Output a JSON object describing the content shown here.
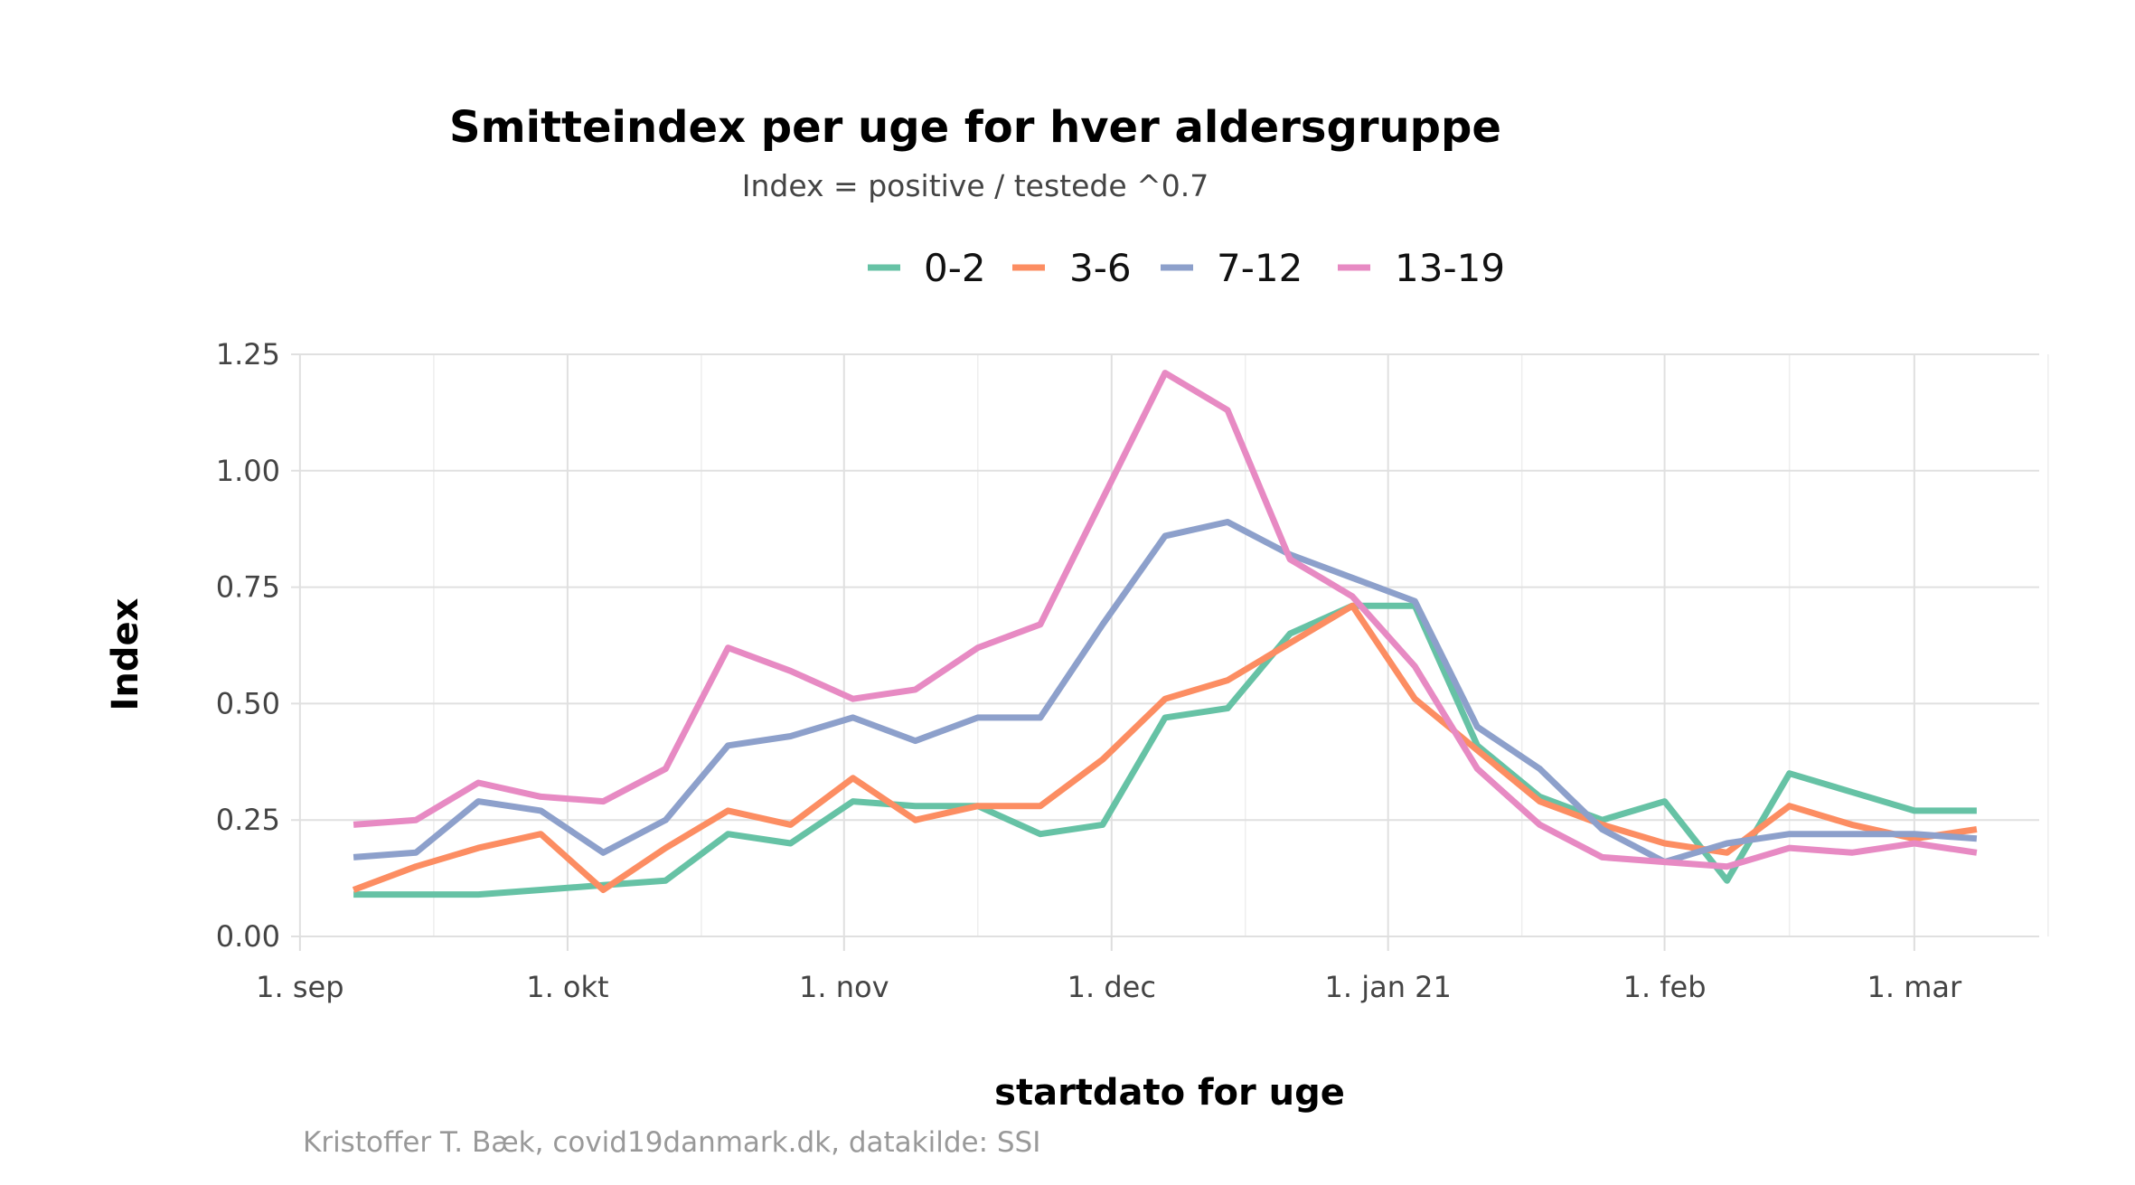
{
  "chart_data": {
    "type": "line",
    "title": "Smitteindex per uge for hver aldersgruppe",
    "subtitle": "Index = positive / testede ^0.7",
    "xlabel": "startdato for uge",
    "ylabel": "Index",
    "caption": "Kristoffer T. Bæk, covid19danmark.dk, datakilde: SSI",
    "legend_position": "top",
    "grid": true,
    "ylim": [
      0,
      1.25
    ],
    "xlim": [
      "2020-08-31",
      "2021-03-15"
    ],
    "y_ticks": [
      {
        "value": 0.0,
        "label": "0.00"
      },
      {
        "value": 0.25,
        "label": "0.25"
      },
      {
        "value": 0.5,
        "label": "0.50"
      },
      {
        "value": 0.75,
        "label": "0.75"
      },
      {
        "value": 1.0,
        "label": "1.00"
      },
      {
        "value": 1.25,
        "label": "1.25"
      }
    ],
    "x_ticks": [
      {
        "date": "2020-09-01",
        "label": "1. sep"
      },
      {
        "date": "2020-10-01",
        "label": "1. okt"
      },
      {
        "date": "2020-11-01",
        "label": "1. nov"
      },
      {
        "date": "2020-12-01",
        "label": "1. dec"
      },
      {
        "date": "2021-01-01",
        "label": "1. jan 21"
      },
      {
        "date": "2021-02-01",
        "label": "1. feb"
      },
      {
        "date": "2021-03-01",
        "label": "1. mar"
      }
    ],
    "x_minor_ticks": [
      "2020-09-16",
      "2020-10-16",
      "2020-11-16",
      "2020-12-16",
      "2021-01-16",
      "2021-02-15",
      "2021-03-16"
    ],
    "x": [
      "2020-09-07",
      "2020-09-14",
      "2020-09-21",
      "2020-09-28",
      "2020-10-05",
      "2020-10-12",
      "2020-10-19",
      "2020-10-26",
      "2020-11-02",
      "2020-11-09",
      "2020-11-16",
      "2020-11-23",
      "2020-11-30",
      "2020-12-07",
      "2020-12-14",
      "2020-12-21",
      "2020-12-28",
      "2021-01-04",
      "2021-01-11",
      "2021-01-18",
      "2021-01-25",
      "2021-02-01",
      "2021-02-08",
      "2021-02-15",
      "2021-02-22",
      "2021-03-01",
      "2021-03-08"
    ],
    "series": [
      {
        "name": "0-2",
        "color": "#66c2a5",
        "values": [
          0.09,
          0.09,
          0.09,
          0.1,
          0.11,
          0.12,
          0.22,
          0.2,
          0.29,
          0.28,
          0.28,
          0.22,
          0.24,
          0.47,
          0.49,
          0.65,
          0.71,
          0.71,
          0.41,
          0.3,
          0.25,
          0.29,
          0.12,
          0.35,
          0.31,
          0.27,
          0.27
        ]
      },
      {
        "name": "3-6",
        "color": "#fc8d62",
        "values": [
          0.1,
          0.15,
          0.19,
          0.22,
          0.1,
          0.19,
          0.27,
          0.24,
          0.34,
          0.25,
          0.28,
          0.28,
          0.38,
          0.51,
          0.55,
          0.63,
          0.71,
          0.51,
          0.4,
          0.29,
          0.24,
          0.2,
          0.18,
          0.28,
          0.24,
          0.21,
          0.23
        ]
      },
      {
        "name": "7-12",
        "color": "#8da0cb",
        "values": [
          0.17,
          0.18,
          0.29,
          0.27,
          0.18,
          0.25,
          0.41,
          0.43,
          0.47,
          0.42,
          0.47,
          0.47,
          0.67,
          0.86,
          0.89,
          0.82,
          0.77,
          0.72,
          0.45,
          0.36,
          0.23,
          0.16,
          0.2,
          0.22,
          0.22,
          0.22,
          0.21
        ]
      },
      {
        "name": "13-19",
        "color": "#e78ac3",
        "values": [
          0.24,
          0.25,
          0.33,
          0.3,
          0.29,
          0.36,
          0.62,
          0.57,
          0.51,
          0.53,
          0.62,
          0.67,
          0.94,
          1.21,
          1.13,
          0.81,
          0.73,
          0.58,
          0.36,
          0.24,
          0.17,
          0.16,
          0.15,
          0.19,
          0.18,
          0.2,
          0.18
        ]
      }
    ]
  }
}
